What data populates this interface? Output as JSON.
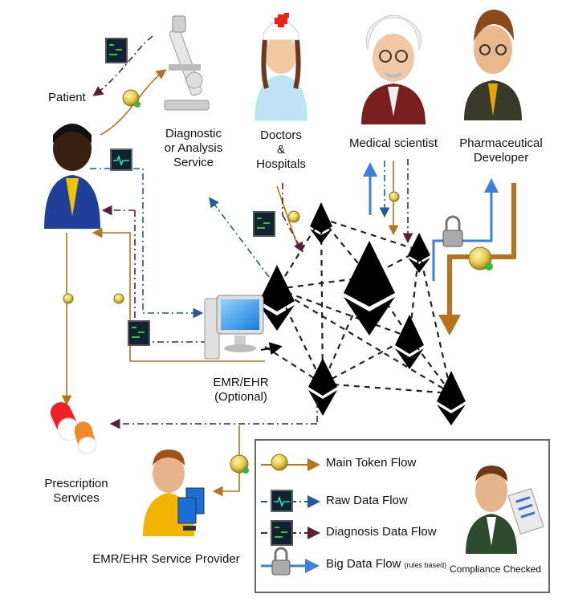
{
  "actors": {
    "patient": "Patient",
    "diagnostic": [
      "Diagnostic",
      "or Analysis",
      "Service"
    ],
    "doctors": [
      "Doctors",
      "&",
      "Hospitals"
    ],
    "scientist": "Medical scientist",
    "pharma": [
      "Pharmaceutical",
      "Developer"
    ],
    "emr": [
      "EMR/EHR",
      "(Optional)"
    ],
    "prescription": [
      "Prescription",
      "Services"
    ],
    "provider": "EMR/EHR Service Provider"
  },
  "legend": {
    "token": "Main Token Flow",
    "raw": "Raw Data Flow",
    "diagnosis": "Diagnosis Data Flow",
    "bigdata": "Big Data Flow",
    "bigdata_note": "(rules based)",
    "compliance": "Compliance Checked"
  },
  "colors": {
    "token": "#b8721d",
    "raw": "#1f5c99",
    "diagnosis": "#5c1f3a",
    "bigdata": "#3d7fe0",
    "black": "#000000"
  }
}
